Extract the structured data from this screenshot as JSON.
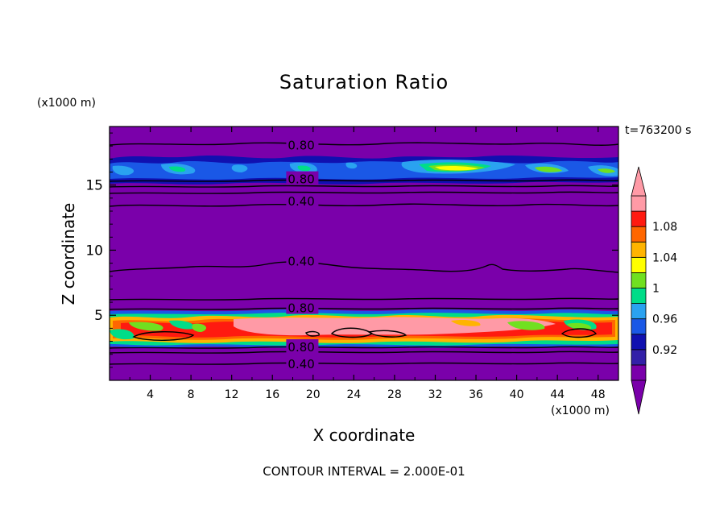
{
  "chart_data": {
    "type": "heatmap",
    "title": "Saturation Ratio",
    "xlabel": "X coordinate",
    "ylabel": "Z coordinate",
    "x_unit": "(x1000 m)",
    "y_unit": "(x1000 m)",
    "time_label": "t=763200 s",
    "footer": "CONTOUR INTERVAL = 2.000E-01",
    "xlim": [
      0,
      50
    ],
    "ylim": [
      0,
      19.5
    ],
    "x_ticks": [
      "4",
      "8",
      "12",
      "16",
      "20",
      "24",
      "28",
      "32",
      "36",
      "40",
      "44",
      "48"
    ],
    "y_ticks": [
      "5",
      "10",
      "15"
    ],
    "contour_labels": [
      {
        "text": "0.80",
        "x": 17.2,
        "z": 18.1
      },
      {
        "text": "0.80",
        "x": 17.2,
        "z": 15.5
      },
      {
        "text": "0.40",
        "x": 17.2,
        "z": 13.8
      },
      {
        "text": "0.40",
        "x": 17.2,
        "z": 9.2
      },
      {
        "text": "0.80",
        "x": 17.2,
        "z": 5.6
      },
      {
        "text": "0.80",
        "x": 17.2,
        "z": 2.6
      },
      {
        "text": "0.40",
        "x": 17.2,
        "z": 1.3
      }
    ],
    "colorbar": {
      "labels": [
        "1.08",
        "1.04",
        "1",
        "0.96",
        "0.92"
      ],
      "colors": [
        "#7a00aa",
        "#3320a8",
        "#1010b0",
        "#1a58e6",
        "#2aa2f0",
        "#00dd88",
        "#70e020",
        "#ffff00",
        "#ffb400",
        "#ff6600",
        "#ff1a10",
        "#ff9aa6"
      ]
    }
  }
}
